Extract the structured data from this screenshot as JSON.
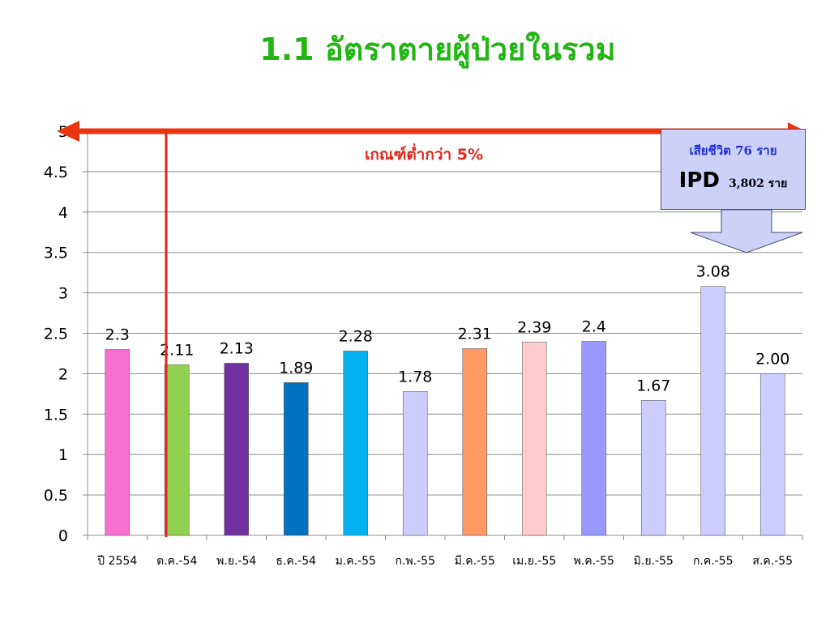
{
  "title": "1.1 อัตราตายผู้ป่วยในรวม",
  "threshold_label": "เกณฑ์ต่ำกว่า 5%",
  "callout": {
    "line1": "เสียชีวิต 76 ราย",
    "ipd": "IPD",
    "count": "3,802 ราย"
  },
  "colors": {
    "title": "#22b514",
    "threshold_arrow": "#e8340f",
    "vertical_marker": "#e3261c",
    "callout_fill": "#cdd0f7",
    "callout_text": "#1f2fd6"
  },
  "chart_data": {
    "type": "bar",
    "categories": [
      "ปี 2554",
      "ต.ค.-54",
      "พ.ย.-54",
      "ธ.ค.-54",
      "ม.ค.-55",
      "ก.พ.-55",
      "มี.ค.-55",
      "เม.ย.-55",
      "พ.ค.-55",
      "มิ.ย.-55",
      "ก.ค.-55",
      "ส.ค.-55"
    ],
    "values": [
      2.3,
      2.11,
      2.13,
      1.89,
      2.28,
      1.78,
      2.31,
      2.39,
      2.4,
      1.67,
      3.08,
      2.0
    ],
    "data_labels": [
      "2.3",
      "2.11",
      "2.13",
      "1.89",
      "2.28",
      "1.78",
      "2.31",
      "2.39",
      "2.4",
      "1.67",
      "3.08",
      "2.00"
    ],
    "bar_colors": [
      "#f76fcf",
      "#92d050",
      "#7030a0",
      "#0070c0",
      "#00b0f0",
      "#ccccff",
      "#ff9966",
      "#ffcccc",
      "#9999ff",
      "#ccccff",
      "#ccccff",
      "#ccccff"
    ],
    "y_ticks": [
      "0",
      "0.5",
      "1",
      "1.5",
      "2",
      "2.5",
      "3",
      "3.5",
      "4",
      "4.5",
      "5"
    ],
    "ylim": [
      0,
      5
    ],
    "threshold": 5,
    "grid": true,
    "legend": "none",
    "title": "",
    "xlabel": "",
    "ylabel": ""
  }
}
